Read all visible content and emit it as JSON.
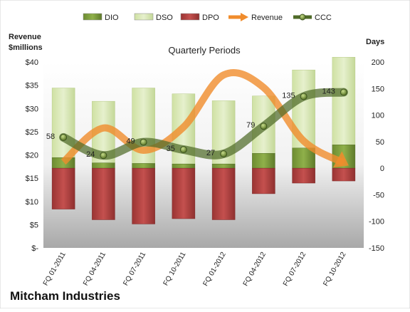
{
  "chart_data": {
    "type": "bar",
    "title": "Quarterly Periods",
    "company": "Mitcham Industries",
    "left_axis_label": [
      "Revenue",
      "$millions"
    ],
    "right_axis_label": "Days",
    "left_ylim": [
      0,
      40
    ],
    "left_ticks": [
      "$-",
      "$5",
      "$10",
      "$15",
      "$20",
      "$25",
      "$30",
      "$35",
      "$40"
    ],
    "right_ylim": [
      -150,
      200
    ],
    "right_ticks": [
      "-150",
      "-100",
      "-50",
      "0",
      "50",
      "100",
      "150",
      "200"
    ],
    "categories": [
      "FQ 01-2011",
      "FQ 04-2011",
      "FQ 07-2011",
      "FQ 10-2011",
      "FQ 01-2012",
      "FQ 04-2012",
      "FQ 07-2012",
      "FQ 10-2012"
    ],
    "legend": [
      "DIO",
      "DSO",
      "DPO",
      "Revenue",
      "CCC"
    ],
    "legend_position": "top",
    "series": [
      {
        "name": "DIO",
        "axis": "right",
        "values": [
          20,
          10,
          9,
          8,
          8,
          28,
          38,
          44
        ],
        "color": "#7a9a3c"
      },
      {
        "name": "DSO",
        "axis": "right",
        "values": [
          131,
          116,
          142,
          132,
          119,
          108,
          147,
          165
        ],
        "color": "#d7e8b0"
      },
      {
        "name": "DPO",
        "axis": "right",
        "values": [
          -77,
          -97,
          -105,
          -95,
          -97,
          -48,
          -28,
          -24
        ],
        "color": "#b3413f"
      },
      {
        "name": "Revenue",
        "axis": "left",
        "values": [
          18.5,
          25.8,
          21.0,
          26.0,
          37.2,
          34.5,
          23.0,
          18.3
        ],
        "color": "#f08c2c"
      },
      {
        "name": "CCC",
        "axis": "right",
        "values": [
          58,
          24,
          49,
          35,
          27,
          79,
          135,
          143
        ],
        "labels": [
          "58",
          "24",
          "49",
          "35",
          "27",
          "79",
          "135",
          "143"
        ],
        "color": "#5a7a2c"
      }
    ]
  }
}
